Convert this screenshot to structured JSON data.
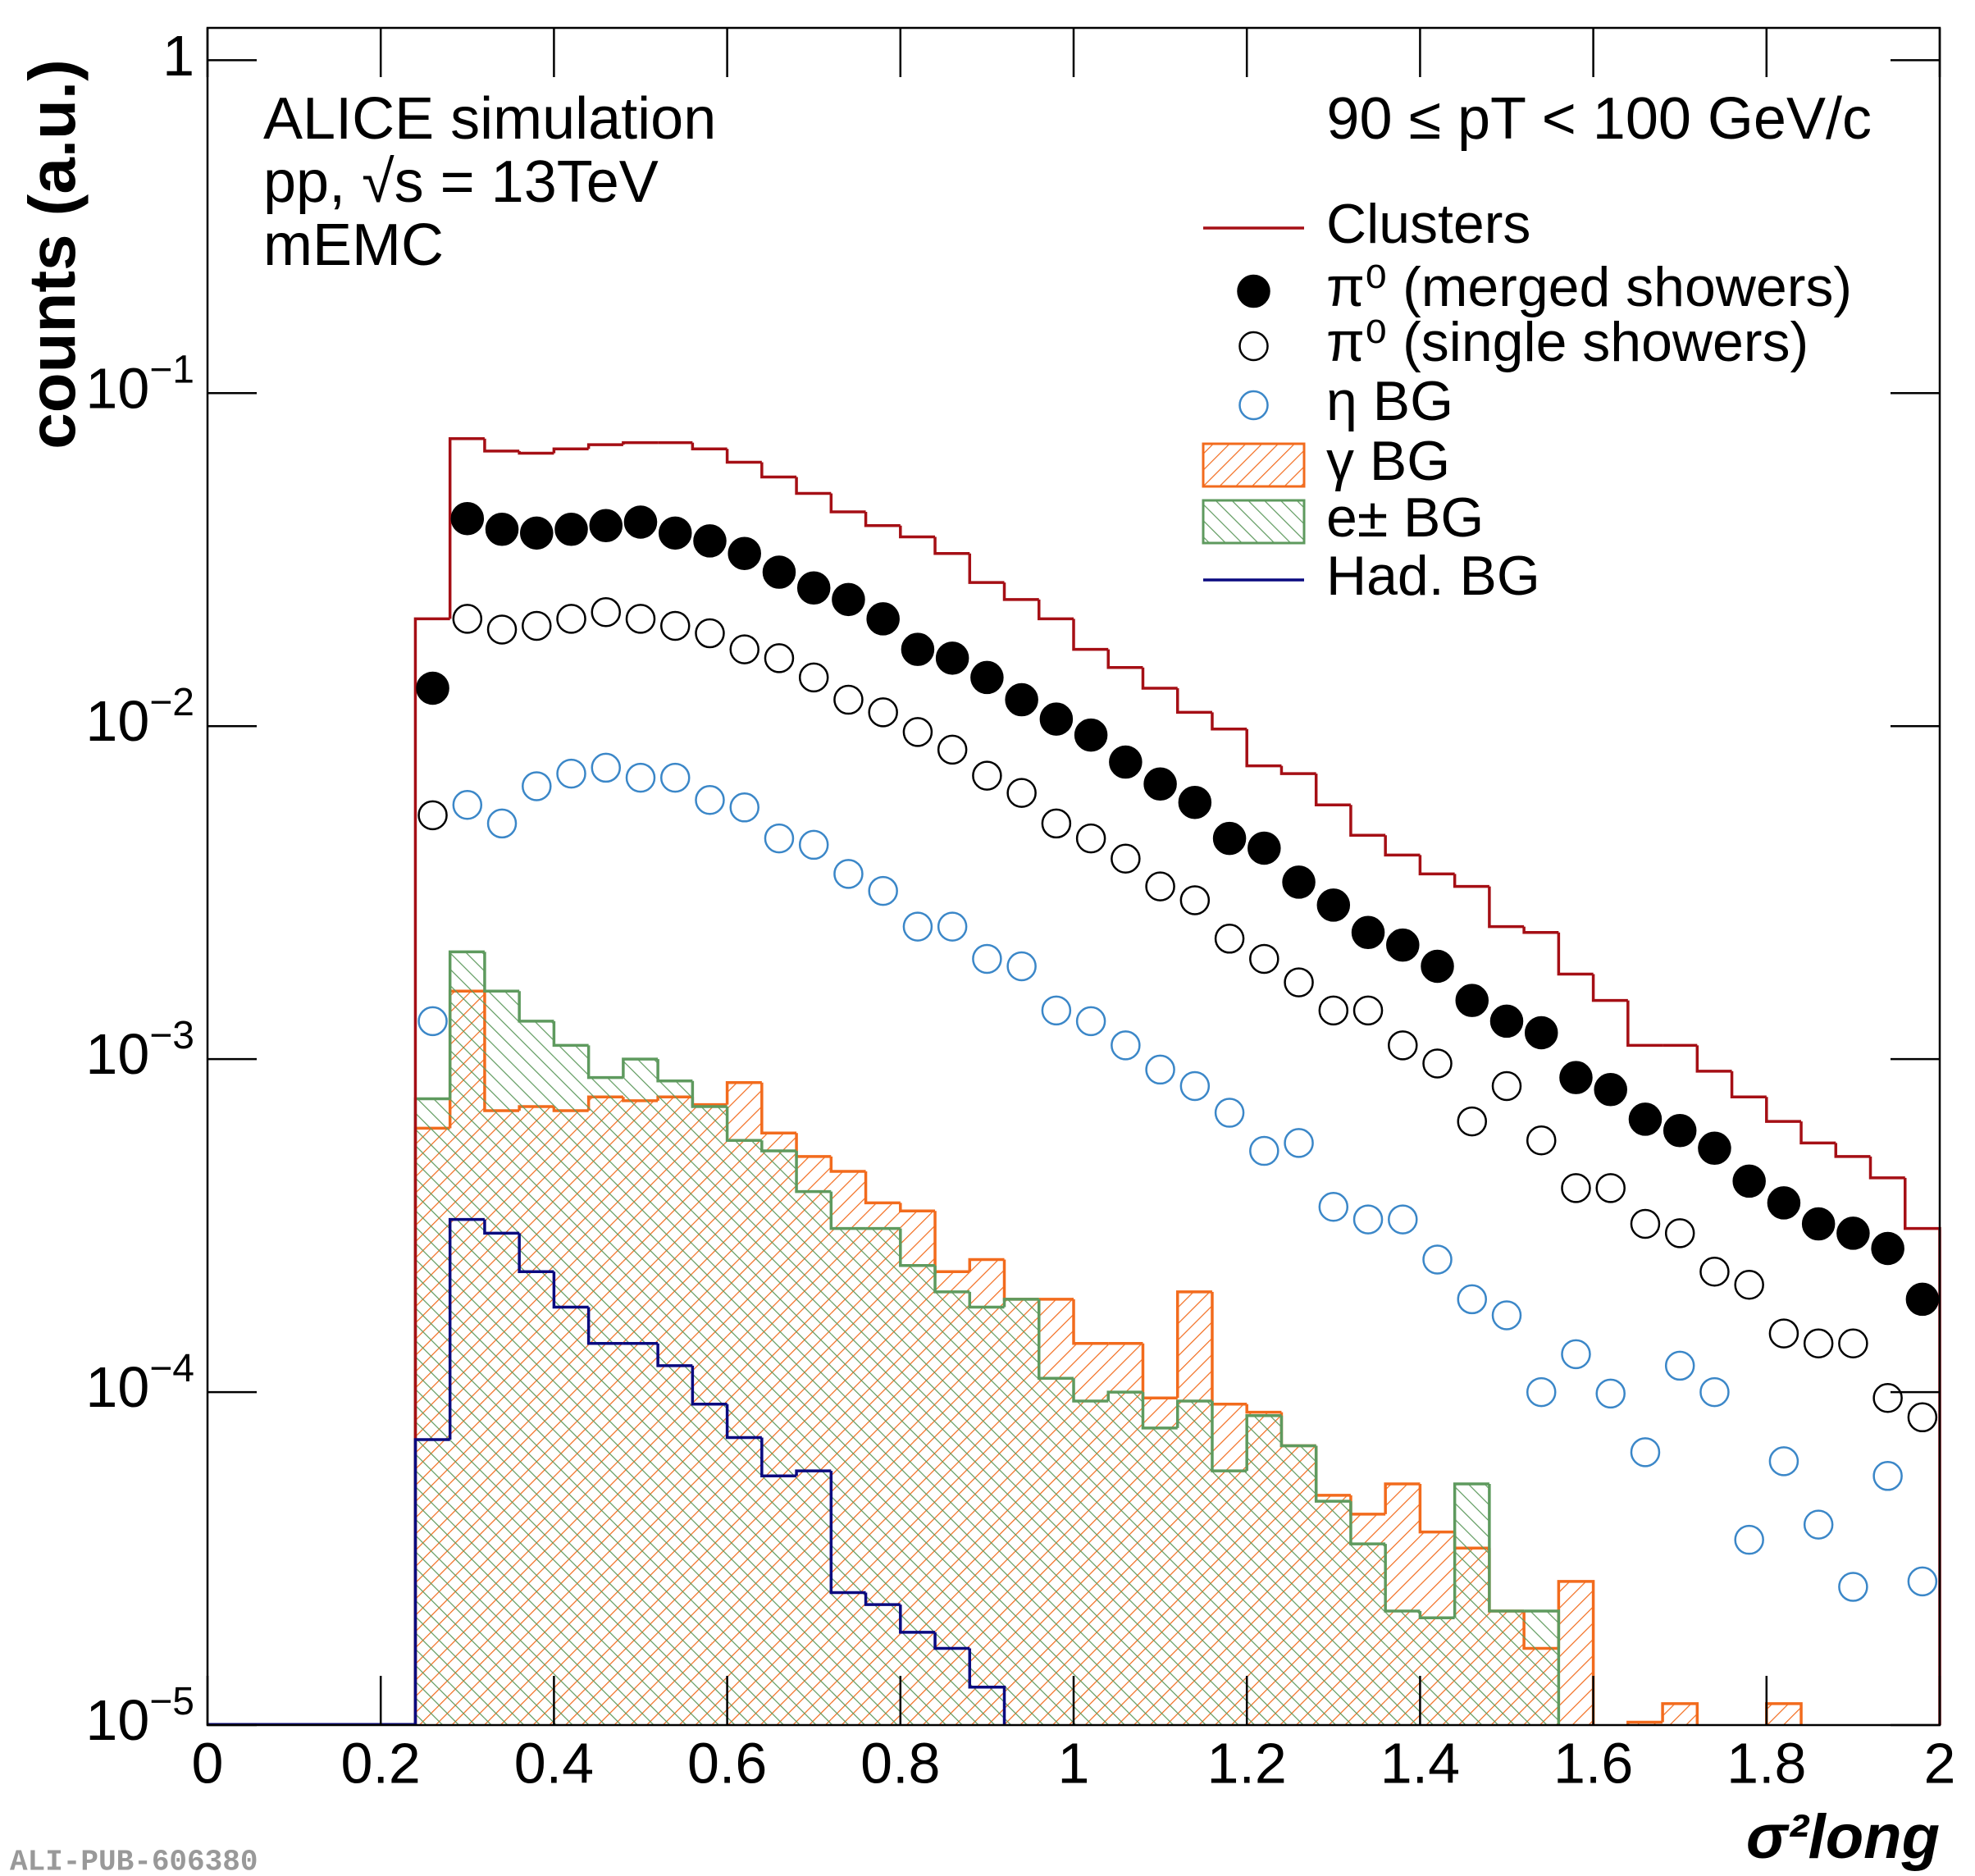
{
  "chart_data": {
    "type": "histogram",
    "x_label": "σ²long",
    "y_label": "counts (a.u.)",
    "annotations": [
      "ALICE simulation",
      "pp, √s = 13TeV",
      "mEMC",
      "90 ≤ pT < 100 GeV/c"
    ],
    "watermark": "ALI-PUB-606380",
    "log_y": true,
    "xlim": [
      0,
      2
    ],
    "ylim": [
      1e-05,
      1.25
    ],
    "xticks": [
      0,
      0.2,
      0.4,
      0.6,
      0.8,
      1,
      1.2,
      1.4,
      1.6,
      1.8,
      2
    ],
    "yticks": [
      {
        "value": 1e-05,
        "label": "10−5"
      },
      {
        "value": 0.0001,
        "label": "10−4"
      },
      {
        "value": 0.001,
        "label": "10−3"
      },
      {
        "value": 0.01,
        "label": "10−2"
      },
      {
        "value": 0.1,
        "label": "10−1"
      },
      1
    ],
    "bins": [
      0.24,
      0.28,
      0.32,
      0.36,
      0.4,
      0.44,
      0.48,
      0.52,
      0.56,
      0.6,
      0.64,
      0.68,
      0.72,
      0.76,
      0.8,
      0.84,
      0.88,
      0.92,
      0.96,
      1.0,
      1.04,
      1.08,
      1.12,
      1.16,
      1.2,
      1.24,
      1.28,
      1.32,
      1.36,
      1.4,
      1.44,
      1.48,
      1.52,
      1.56,
      1.6,
      1.64,
      1.68,
      1.72,
      1.76,
      1.8,
      1.84,
      1.88,
      1.92,
      1.96,
      2.0
    ],
    "series": [
      {
        "name": "Clusters",
        "color": "#a50f15",
        "style": "line",
        "values": [
          0.021,
          0.073,
          0.067,
          0.066,
          0.068,
          0.07,
          0.071,
          0.071,
          0.068,
          0.062,
          0.056,
          0.05,
          0.044,
          0.04,
          0.037,
          0.033,
          0.027,
          0.024,
          0.021,
          0.017,
          0.015,
          0.013,
          0.011,
          0.0098,
          0.0076,
          0.0072,
          0.0058,
          0.0047,
          0.0041,
          0.0036,
          0.0033,
          0.0025,
          0.0024,
          0.0018,
          0.0015,
          0.0011,
          0.0011,
          0.00092,
          0.00077,
          0.00065,
          0.00056,
          0.00051,
          0.00044,
          0.00031
        ]
      },
      {
        "name": "π⁰ (merged showers)",
        "color": "#000000",
        "style": "filled",
        "values": [
          0.013,
          0.042,
          0.039,
          0.038,
          0.039,
          0.04,
          0.041,
          0.038,
          0.036,
          0.033,
          0.029,
          0.026,
          0.024,
          0.021,
          0.017,
          0.016,
          0.014,
          0.012,
          0.0105,
          0.0094,
          0.0078,
          0.0067,
          0.0059,
          0.0046,
          0.0043,
          0.0034,
          0.0029,
          0.0024,
          0.0022,
          0.0019,
          0.0015,
          0.0013,
          0.0012,
          0.00088,
          0.00081,
          0.00066,
          0.00061,
          0.00054,
          0.00043,
          0.00037,
          0.00032,
          0.0003,
          0.00027,
          0.00019
        ]
      },
      {
        "name": "π⁰ (single showers)",
        "color": "#000000",
        "style": "open",
        "values": [
          0.0054,
          0.021,
          0.0195,
          0.02,
          0.021,
          0.022,
          0.021,
          0.02,
          0.019,
          0.017,
          0.016,
          0.014,
          0.012,
          0.011,
          0.0096,
          0.0085,
          0.0071,
          0.0063,
          0.0051,
          0.0046,
          0.004,
          0.0033,
          0.003,
          0.0023,
          0.002,
          0.0017,
          0.0014,
          0.0014,
          0.0011,
          0.00097,
          0.00065,
          0.00083,
          0.00057,
          0.00041,
          0.00041,
          0.00032,
          0.0003,
          0.00023,
          0.00021,
          0.00015,
          0.00014,
          0.00014,
          9.6e-05,
          8.4e-05
        ]
      },
      {
        "name": "η BG",
        "color": "#3b87c8",
        "style": "open",
        "values": [
          0.0013,
          0.0058,
          0.0051,
          0.0066,
          0.0072,
          0.0075,
          0.007,
          0.007,
          0.006,
          0.0057,
          0.0046,
          0.0044,
          0.0036,
          0.0032,
          0.0025,
          0.0025,
          0.002,
          0.0019,
          0.0014,
          0.0013,
          0.0011,
          0.00093,
          0.00083,
          0.00069,
          0.00053,
          0.00056,
          0.00036,
          0.00033,
          0.00033,
          0.00025,
          0.00019,
          0.00017,
          0.0001,
          0.00013,
          9.9e-05,
          6.6e-05,
          0.00012,
          0.0001,
          3.6e-05,
          6.2e-05,
          4e-05,
          2.6e-05,
          5.6e-05,
          2.7e-05
        ]
      },
      {
        "name": "γ BG",
        "color": "#f26b1d",
        "style": "hatched",
        "values": [
          0.00062,
          0.0016,
          0.0007,
          0.00072,
          0.0007,
          0.00077,
          0.00075,
          0.00077,
          0.00073,
          0.00085,
          0.0006,
          0.00051,
          0.00046,
          0.00037,
          0.00035,
          0.00023,
          0.00025,
          0.00019,
          0.00019,
          0.00014,
          0.00014,
          9.6e-05,
          0.0002,
          9.2e-05,
          8.7e-05,
          6.9e-05,
          4.9e-05,
          4.3e-05,
          5.3e-05,
          3.8e-05,
          3.4e-05,
          2.2e-05,
          1.7e-05,
          2.7e-05,
          null,
          1.02e-05,
          1.16e-05,
          null,
          null,
          1.16e-05,
          null,
          null,
          null,
          null
        ]
      },
      {
        "name": "e± BG",
        "color": "#5e9a5e",
        "style": "hatched",
        "values": [
          0.00076,
          0.0021,
          0.0016,
          0.0013,
          0.0011,
          0.00088,
          0.001,
          0.00086,
          0.00072,
          0.00057,
          0.00053,
          0.0004,
          0.00031,
          0.00031,
          0.00024,
          0.0002,
          0.00018,
          0.00019,
          0.00011,
          9.4e-05,
          0.0001,
          7.8e-05,
          9.4e-05,
          5.8e-05,
          8.5e-05,
          6.9e-05,
          4.7e-05,
          3.5e-05,
          2.2e-05,
          2.1e-05,
          5.3e-05,
          2.2e-05,
          2.2e-05,
          null,
          null,
          null,
          null,
          null,
          null,
          null,
          null,
          null,
          null,
          null
        ]
      },
      {
        "name": "Had. BG",
        "color": "#0a0a80",
        "style": "line",
        "values": [
          7.2e-05,
          0.00033,
          0.0003,
          0.00023,
          0.00018,
          0.00014,
          0.00014,
          0.00012,
          9.2e-05,
          7.3e-05,
          5.6e-05,
          5.8e-05,
          2.5e-05,
          2.3e-05,
          1.9e-05,
          1.7e-05,
          1.3e-05,
          null,
          null,
          null,
          null,
          null,
          null,
          null,
          null,
          null,
          null,
          null,
          null,
          null,
          null,
          null,
          null,
          null,
          null,
          null,
          null,
          null,
          null,
          null,
          null,
          null,
          null,
          null
        ]
      }
    ]
  }
}
